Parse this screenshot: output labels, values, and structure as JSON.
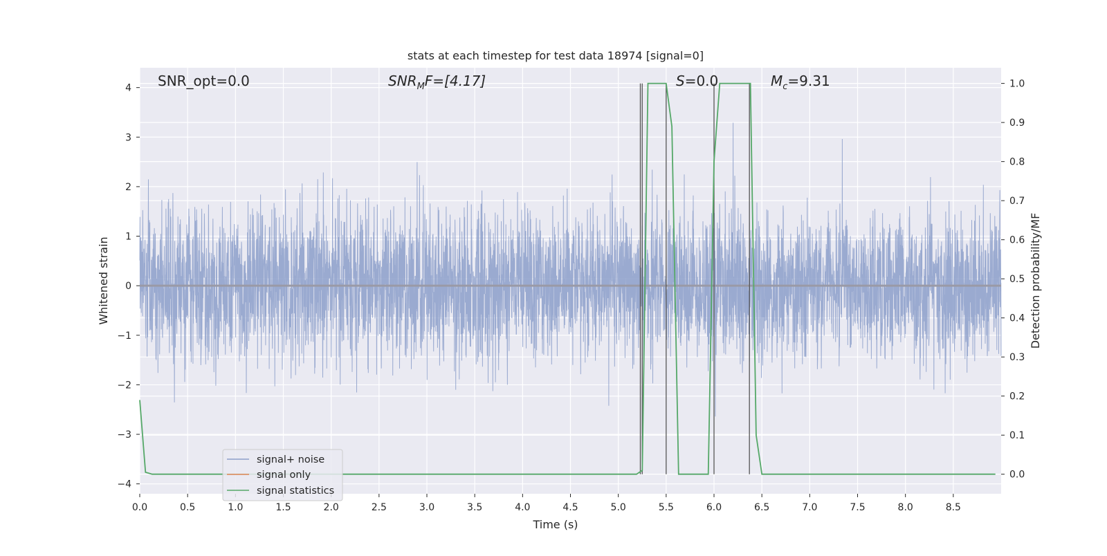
{
  "chart_data": {
    "type": "line",
    "title": "stats at each timestep for test data 18974 [signal=0]",
    "xlabel": "Time (s)",
    "ylabel": "Whitened strain",
    "ylabel_right": "Detection probability/MF",
    "xlim": [
      0.0,
      9.0
    ],
    "ylim": [
      -4.2,
      4.4
    ],
    "ylim_right": [
      -0.05,
      1.04
    ],
    "x_ticks": [
      0.0,
      0.5,
      1.0,
      1.5,
      2.0,
      2.5,
      3.0,
      3.5,
      4.0,
      4.5,
      5.0,
      5.5,
      6.0,
      6.5,
      7.0,
      7.5,
      8.0,
      8.5
    ],
    "x_tick_labels": [
      "0.0",
      "0.5",
      "1.0",
      "1.5",
      "2.0",
      "2.5",
      "3.0",
      "3.5",
      "4.0",
      "4.5",
      "5.0",
      "5.5",
      "6.0",
      "6.5",
      "7.0",
      "7.5",
      "8.0",
      "8.5"
    ],
    "y_ticks": [
      -4,
      -3,
      -2,
      -1,
      0,
      1,
      2,
      3,
      4
    ],
    "y_tick_labels": [
      "−4",
      "−3",
      "−2",
      "−1",
      "0",
      "1",
      "2",
      "3",
      "4"
    ],
    "y_right_ticks": [
      0.0,
      0.1,
      0.2,
      0.3,
      0.4,
      0.5,
      0.6,
      0.7,
      0.8,
      0.9,
      1.0
    ],
    "y_right_tick_labels": [
      "0.0",
      "0.1",
      "0.2",
      "0.3",
      "0.4",
      "0.5",
      "0.6",
      "0.7",
      "0.8",
      "0.9",
      "1.0"
    ],
    "grid": true,
    "legend_position": "lower-left",
    "annotations": {
      "snr_opt": "SNR_opt=0.0",
      "snr_mf_main": "SNR",
      "snr_mf_sub": "M",
      "snr_mf_rest": "F=[4.17]",
      "s_main": "S",
      "s_rest": "=0.0",
      "mc_main": "M",
      "mc_sub": "c",
      "mc_rest": "=9.31"
    },
    "series": [
      {
        "name": "signal+ noise",
        "color": "#8c9fca",
        "axis": "left",
        "description_values": "whitened noise, roughly zero-mean with amplitude mostly within ±2.5, peaks to about ±3.5"
      },
      {
        "name": "signal only",
        "color": "#dd8452",
        "axis": "left",
        "values_constant": 0.0
      },
      {
        "name": "signal statistics",
        "color": "#55a868",
        "axis": "right",
        "x": [
          0.0,
          0.06,
          0.13,
          0.5,
          1.0,
          1.5,
          2.0,
          2.5,
          3.0,
          3.5,
          4.0,
          4.5,
          5.0,
          5.19,
          5.25,
          5.31,
          5.5,
          5.56,
          5.63,
          5.94,
          6.0,
          6.06,
          6.38,
          6.44,
          6.5,
          7.0,
          7.5,
          8.0,
          8.5,
          8.94
        ],
        "values": [
          0.19,
          0.005,
          0.0,
          0.0,
          0.0,
          0.0,
          0.0,
          0.0,
          0.0,
          0.0,
          0.0,
          0.0,
          0.0,
          0.0,
          0.01,
          1.0,
          1.0,
          0.89,
          0.0,
          0.0,
          0.8,
          1.0,
          1.0,
          0.1,
          0.0,
          0.0,
          0.0,
          0.0,
          0.0,
          0.0
        ]
      }
    ],
    "vertical_markers": [
      5.23,
      5.25,
      5.5,
      6.0,
      6.37
    ]
  }
}
